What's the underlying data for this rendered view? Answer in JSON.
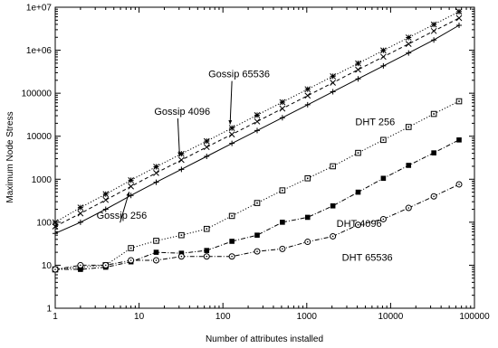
{
  "chart_data": {
    "type": "line",
    "title": "",
    "xlabel": "Number of attributes installed",
    "ylabel": "Maximum Node Stress",
    "xscale": "log",
    "yscale": "log",
    "xlim": [
      1,
      100000
    ],
    "ylim": [
      1,
      10000000
    ],
    "x_tick_labels": [
      "1",
      "10",
      "100",
      "1000",
      "10000",
      "100000"
    ],
    "y_tick_labels": [
      "1",
      "10",
      "100",
      "1000",
      "10000",
      "100000",
      "1e+06",
      "1e+07"
    ],
    "grid": false,
    "legend": "none",
    "x": [
      1,
      2,
      4,
      8,
      16,
      32,
      64,
      128,
      256,
      512,
      1024,
      2048,
      4096,
      8192,
      16384,
      32768,
      65536
    ],
    "series": [
      {
        "name": "Gossip 65536",
        "marker": "asterisk",
        "line": "dotted",
        "values": [
          100,
          220,
          450,
          950,
          1950,
          3900,
          7700,
          15500,
          31000,
          62000,
          124000,
          248000,
          495000,
          990000,
          1980000,
          3960000,
          7900000
        ]
      },
      {
        "name": "Gossip 4096",
        "marker": "x",
        "line": "dashed",
        "values": [
          80,
          160,
          330,
          680,
          1400,
          2800,
          5600,
          11000,
          22000,
          44000,
          88000,
          176000,
          352000,
          704000,
          1400000,
          2800000,
          5600000
        ]
      },
      {
        "name": "Gossip 256",
        "marker": "plus",
        "line": "solid",
        "values": [
          55,
          100,
          200,
          420,
          850,
          1700,
          3400,
          6800,
          13600,
          27000,
          54000,
          108000,
          216000,
          432000,
          864000,
          1730000,
          3800000
        ]
      },
      {
        "name": "DHT 256",
        "marker": "open-square",
        "line": "dotted",
        "values": [
          8,
          9,
          10,
          25,
          37,
          50,
          70,
          140,
          280,
          550,
          1050,
          2000,
          4100,
          8200,
          16400,
          33000,
          65000
        ]
      },
      {
        "name": "DHT 4096",
        "marker": "filled-square",
        "line": "dash-dot",
        "values": [
          8,
          8,
          9,
          12,
          20,
          19,
          22,
          36,
          50,
          100,
          130,
          240,
          500,
          1050,
          2100,
          4100,
          8200
        ]
      },
      {
        "name": "DHT 65536",
        "marker": "open-circle",
        "line": "dash-dot",
        "values": [
          8,
          10,
          10,
          13,
          13,
          16,
          16,
          16,
          21,
          24,
          35,
          47,
          87,
          118,
          215,
          400,
          760
        ]
      }
    ],
    "annotations": [
      {
        "text": "Gossip 65536",
        "series": "Gossip 65536"
      },
      {
        "text": "Gossip 4096",
        "series": "Gossip 4096"
      },
      {
        "text": "Gossip 256",
        "series": "Gossip 256"
      },
      {
        "text": "DHT 256",
        "series": "DHT 256"
      },
      {
        "text": "DHT 4096",
        "series": "DHT 4096"
      },
      {
        "text": "DHT 65536",
        "series": "DHT 65536"
      }
    ]
  }
}
